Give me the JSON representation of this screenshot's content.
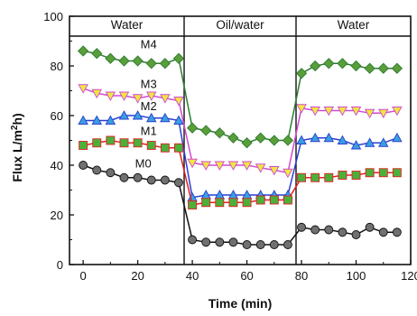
{
  "chart_data": {
    "type": "line",
    "xlabel": "Time (min)",
    "ylabel_main": "Flux L/m",
    "ylabel_sup": "2",
    "ylabel_tail": "h)",
    "xlim": [
      -5,
      120
    ],
    "ylim": [
      0,
      100
    ],
    "xticks": [
      0,
      20,
      40,
      60,
      80,
      100,
      120
    ],
    "yticks": [
      0,
      20,
      40,
      60,
      80,
      100
    ],
    "grid": false,
    "phases": [
      {
        "label": "Water",
        "x_start": -5,
        "x_end": 37
      },
      {
        "label": "Oil/water",
        "x_start": 37,
        "x_end": 78
      },
      {
        "label": "Water",
        "x_start": 78,
        "x_end": 120
      }
    ],
    "phase_band": [
      92,
      100
    ],
    "series": [
      {
        "name": "M4",
        "color": "#2e7d32",
        "fill": "#5a9e3a",
        "marker": "diamond",
        "label_at": [
          24,
          89
        ],
        "x": [
          0,
          5,
          10,
          15,
          20,
          25,
          30,
          35,
          40,
          45,
          50,
          55,
          60,
          65,
          70,
          75,
          80,
          85,
          90,
          95,
          100,
          105,
          110,
          115
        ],
        "y": [
          86,
          85,
          83,
          82,
          82,
          81,
          81,
          83,
          55,
          54,
          53,
          51,
          49,
          51,
          50,
          50,
          77,
          80,
          81,
          81,
          80,
          79,
          79,
          79
        ]
      },
      {
        "name": "M3",
        "color": "#d04ad0",
        "fill": "#f0e640",
        "marker": "triangle-down",
        "label_at": [
          24,
          73
        ],
        "x": [
          0,
          5,
          10,
          15,
          20,
          25,
          30,
          35,
          40,
          45,
          50,
          55,
          60,
          65,
          70,
          75,
          80,
          85,
          90,
          95,
          100,
          105,
          110,
          115
        ],
        "y": [
          71,
          69,
          68,
          68,
          67,
          68,
          67,
          66,
          41,
          40,
          40,
          40,
          40,
          39,
          38,
          37,
          63,
          62,
          62,
          62,
          62,
          61,
          61,
          62
        ]
      },
      {
        "name": "M2",
        "color": "#2a3fd0",
        "fill": "#3a9fe0",
        "marker": "triangle-up",
        "label_at": [
          24,
          64
        ],
        "x": [
          0,
          5,
          10,
          15,
          20,
          25,
          30,
          35,
          40,
          45,
          50,
          55,
          60,
          65,
          70,
          75,
          80,
          85,
          90,
          95,
          100,
          105,
          110,
          115
        ],
        "y": [
          58,
          58,
          58,
          60,
          60,
          59,
          59,
          58,
          27,
          28,
          28,
          28,
          28,
          28,
          28,
          28,
          50,
          51,
          51,
          50,
          48,
          49,
          49,
          51
        ]
      },
      {
        "name": "M1",
        "color": "#e02020",
        "fill": "#4caf3a",
        "marker": "square",
        "label_at": [
          24,
          54
        ],
        "x": [
          0,
          5,
          10,
          15,
          20,
          25,
          30,
          35,
          40,
          45,
          50,
          55,
          60,
          65,
          70,
          75,
          80,
          85,
          90,
          95,
          100,
          105,
          110,
          115
        ],
        "y": [
          48,
          49,
          50,
          49,
          49,
          48,
          47,
          47,
          24,
          25,
          25,
          25,
          25,
          26,
          26,
          26,
          35,
          35,
          35,
          36,
          36,
          37,
          37,
          37
        ]
      },
      {
        "name": "M0",
        "color": "#111111",
        "fill": "#707070",
        "marker": "circle",
        "label_at": [
          22,
          41
        ],
        "x": [
          0,
          5,
          10,
          15,
          20,
          25,
          30,
          35,
          40,
          45,
          50,
          55,
          60,
          65,
          70,
          75,
          80,
          85,
          90,
          95,
          100,
          105,
          110,
          115
        ],
        "y": [
          40,
          38,
          37,
          35,
          35,
          34,
          34,
          33,
          10,
          9,
          9,
          9,
          8,
          8,
          8,
          8,
          15,
          14,
          14,
          13,
          12,
          15,
          13,
          13
        ]
      }
    ]
  }
}
